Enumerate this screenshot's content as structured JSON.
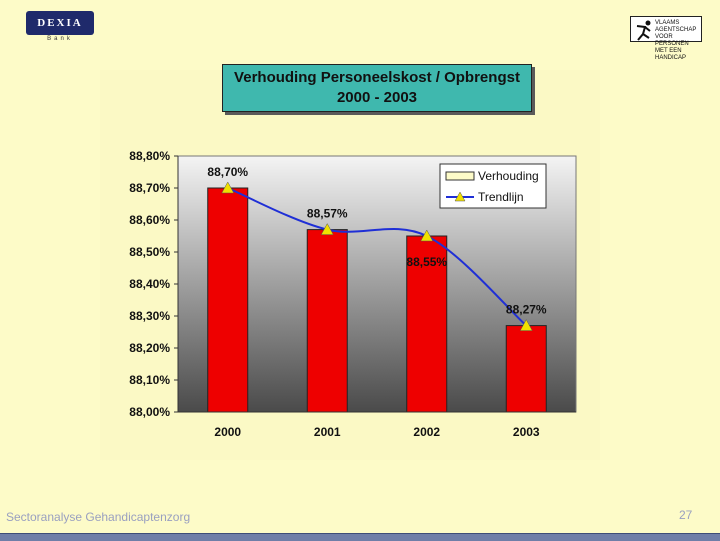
{
  "header": {
    "left_logo": {
      "text": "DEXIA",
      "sub": "Bank"
    },
    "right_logo": {
      "text": "VLAAMS AGENTSCHAP VOOR PERSONEN MET EEN HANDICAP"
    }
  },
  "chart_data": {
    "type": "bar",
    "title": "Verhouding Personeelskost / Opbrengst",
    "subtitle": "2000 - 2003",
    "categories": [
      "2000",
      "2001",
      "2002",
      "2003"
    ],
    "series": [
      {
        "name": "Verhouding",
        "values": [
          88.7,
          88.57,
          88.55,
          88.27
        ],
        "color": "#ee0000"
      },
      {
        "name": "Trendlijn",
        "values": [
          88.7,
          88.57,
          88.55,
          88.27
        ],
        "color": "#1f2fd6",
        "marker_color": "#f0e000"
      }
    ],
    "data_labels": [
      "88,70%",
      "88,57%",
      "88,55%",
      "88,27%"
    ],
    "ylim": [
      88.0,
      88.8
    ],
    "y_ticks": [
      "88,00%",
      "88,10%",
      "88,20%",
      "88,30%",
      "88,40%",
      "88,50%",
      "88,60%",
      "88,70%",
      "88,80%"
    ],
    "legend": "top-right",
    "plot_background": "gradient grey"
  },
  "footer": {
    "left_text": "Sectoranalyse Gehandicaptenzorg",
    "page_number": "27"
  }
}
